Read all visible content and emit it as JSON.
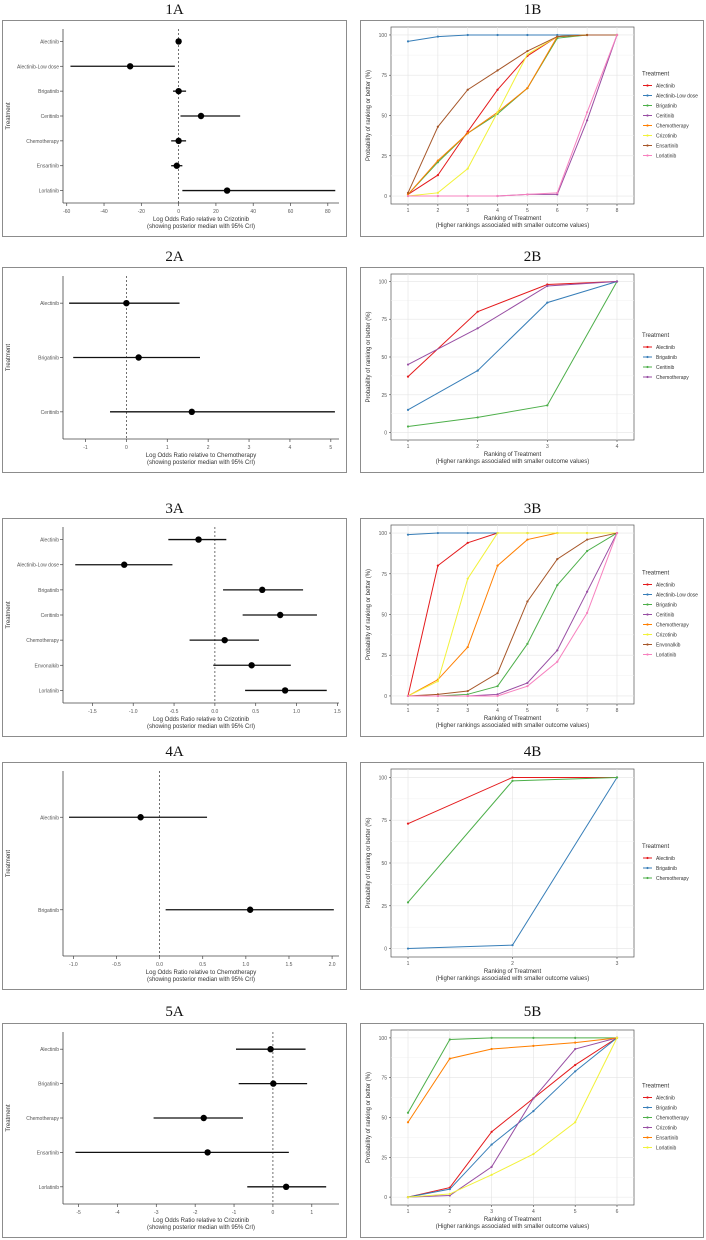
{
  "colors": {
    "red": "#E41A1C",
    "blue": "#377EB8",
    "green": "#4DAF4A",
    "purple": "#984EA3",
    "orange": "#FF7F00",
    "yellow": "#F2F23A",
    "brown": "#A65628",
    "pink": "#F781BF"
  },
  "chart_data": [
    {
      "id": "1A",
      "type": "forest",
      "title": "1A",
      "ylabel": "Treatment",
      "xlabel": "Log Odds Ratio relative to Crizotinib",
      "xlabel2": "(showing posterior median with 95% CrI)",
      "xlim": [
        -62,
        86
      ],
      "ticks": [
        "-60",
        "-40",
        "-20",
        "0",
        "20",
        "40",
        "60",
        "80"
      ],
      "rows": [
        {
          "name": "Alectinib",
          "median": 0,
          "lo": -1,
          "hi": 1
        },
        {
          "name": "Alectinib-Low dose",
          "median": -26,
          "lo": -58,
          "hi": -2
        },
        {
          "name": "Brigatinib",
          "median": 0,
          "lo": -3,
          "hi": 4
        },
        {
          "name": "Ceritinib",
          "median": 12,
          "lo": 1,
          "hi": 33
        },
        {
          "name": "Chemotherapy",
          "median": 0,
          "lo": -4,
          "hi": 4
        },
        {
          "name": "Ensartinib",
          "median": -1,
          "lo": -4,
          "hi": 2
        },
        {
          "name": "Lorlatinib",
          "median": 26,
          "lo": 2,
          "hi": 84
        }
      ]
    },
    {
      "id": "1B",
      "type": "line",
      "title": "1B",
      "ylabel": "Probability of ranking or better (%)",
      "xlabel": "Ranking of Treatment",
      "xlabel2": "(Higher rankings associated with smaller outcome values)",
      "legend_title": "Treatment",
      "legend": "right",
      "x": [
        "1",
        "2",
        "3",
        "4",
        "5",
        "6",
        "7",
        "8"
      ],
      "ylim": [
        0,
        100
      ],
      "yticks": [
        "0",
        "25",
        "50",
        "75",
        "100"
      ],
      "series": [
        {
          "name": "Alectinib",
          "color": "red",
          "values": [
            1,
            13,
            40,
            66,
            87,
            99,
            100,
            100
          ]
        },
        {
          "name": "Alectinib-Low dose",
          "color": "blue",
          "values": [
            96,
            99,
            100,
            100,
            100,
            100,
            100,
            100
          ]
        },
        {
          "name": "Brigatinib",
          "color": "green",
          "values": [
            1,
            21,
            39,
            51,
            67,
            98,
            100,
            100
          ]
        },
        {
          "name": "Ceritinib",
          "color": "purple",
          "values": [
            0,
            0,
            0,
            0,
            1,
            1,
            47,
            100
          ]
        },
        {
          "name": "Chemotherapy",
          "color": "orange",
          "values": [
            1,
            22,
            39,
            52,
            67,
            99,
            100,
            100
          ]
        },
        {
          "name": "Crizotinib",
          "color": "yellow",
          "values": [
            0,
            2,
            17,
            52,
            88,
            99,
            100,
            100
          ]
        },
        {
          "name": "Ensartinib",
          "color": "brown",
          "values": [
            2,
            43,
            66,
            78,
            90,
            99,
            100,
            100
          ]
        },
        {
          "name": "Lorlatinib",
          "color": "pink",
          "values": [
            0,
            0,
            0,
            0,
            1,
            2,
            52,
            100
          ]
        }
      ]
    },
    {
      "id": "2A",
      "type": "forest",
      "title": "2A",
      "ylabel": "Treatment",
      "xlabel": "Log Odds Ratio relative to Chemotherapy",
      "xlabel2": "(showing posterior median with 95% CrI)",
      "xlim": [
        -1.55,
        5.2
      ],
      "ticks": [
        "-1",
        "0",
        "1",
        "2",
        "3",
        "4",
        "5"
      ],
      "rows": [
        {
          "name": "Alectinib",
          "median": 0,
          "lo": -1.4,
          "hi": 1.3
        },
        {
          "name": "Brigatinib",
          "median": 0.3,
          "lo": -1.3,
          "hi": 1.8
        },
        {
          "name": "Ceritinib",
          "median": 1.6,
          "lo": -0.4,
          "hi": 5.1
        }
      ]
    },
    {
      "id": "2B",
      "type": "line",
      "title": "2B",
      "ylabel": "Probability of ranking or better (%)",
      "xlabel": "Ranking of Treatment",
      "xlabel2": "(Higher rankings associated with smaller outcome values)",
      "legend_title": "Treatment",
      "legend": "right",
      "x": [
        "1",
        "2",
        "3",
        "4"
      ],
      "ylim": [
        0,
        100
      ],
      "yticks": [
        "0",
        "25",
        "50",
        "75",
        "100"
      ],
      "series": [
        {
          "name": "Alectinib",
          "color": "red",
          "values": [
            37,
            80,
            98,
            100
          ]
        },
        {
          "name": "Brigatinib",
          "color": "blue",
          "values": [
            15,
            41,
            86,
            100
          ]
        },
        {
          "name": "Ceritinib",
          "color": "green",
          "values": [
            4,
            10,
            18,
            100
          ]
        },
        {
          "name": "Chemotherapy",
          "color": "purple",
          "values": [
            45,
            69,
            97,
            100
          ]
        }
      ]
    },
    {
      "id": "3A",
      "type": "forest",
      "title": "3A",
      "ylabel": "Treatment",
      "xlabel": "Log Odds Ratio relative to Crizotinib",
      "xlabel2": "(showing posterior median with 95% CrI)",
      "xlim": [
        -1.86,
        1.52
      ],
      "ticks": [
        "-1.5",
        "-1.0",
        "-0.5",
        "0.0",
        "0.5",
        "1.0",
        "1.5"
      ],
      "rows": [
        {
          "name": "Alectinib",
          "median": -0.2,
          "lo": -0.57,
          "hi": 0.14
        },
        {
          "name": "Alectinib-Low dose",
          "median": -1.11,
          "lo": -1.71,
          "hi": -0.52
        },
        {
          "name": "Brigatinib",
          "median": 0.58,
          "lo": 0.1,
          "hi": 1.08
        },
        {
          "name": "Ceritinib",
          "median": 0.8,
          "lo": 0.34,
          "hi": 1.25
        },
        {
          "name": "Chemotherapy",
          "median": 0.12,
          "lo": -0.31,
          "hi": 0.54
        },
        {
          "name": "Envonalkib",
          "median": 0.45,
          "lo": -0.02,
          "hi": 0.93
        },
        {
          "name": "Lorlatinib",
          "median": 0.86,
          "lo": 0.37,
          "hi": 1.37
        }
      ]
    },
    {
      "id": "3B",
      "type": "line",
      "title": "3B",
      "ylabel": "Probability of ranking or better (%)",
      "xlabel": "Ranking of Treatment",
      "xlabel2": "(Higher rankings associated with smaller outcome values)",
      "legend_title": "Treatment",
      "legend": "right",
      "x": [
        "1",
        "2",
        "3",
        "4",
        "5",
        "6",
        "7",
        "8"
      ],
      "ylim": [
        0,
        100
      ],
      "yticks": [
        "0",
        "25",
        "50",
        "75",
        "100"
      ],
      "series": [
        {
          "name": "Alectinib",
          "color": "red",
          "values": [
            0,
            80,
            94,
            100,
            100,
            100,
            100,
            100
          ]
        },
        {
          "name": "Alectinib-Low dose",
          "color": "blue",
          "values": [
            99,
            100,
            100,
            100,
            100,
            100,
            100,
            100
          ]
        },
        {
          "name": "Brigatinib",
          "color": "green",
          "values": [
            0,
            0,
            1,
            6,
            32,
            68,
            89,
            100
          ]
        },
        {
          "name": "Ceritinib",
          "color": "purple",
          "values": [
            0,
            0,
            0,
            1,
            8,
            28,
            64,
            100
          ]
        },
        {
          "name": "Chemotherapy",
          "color": "orange",
          "values": [
            0,
            10,
            30,
            80,
            96,
            100,
            100,
            100
          ]
        },
        {
          "name": "Crizotinib",
          "color": "yellow",
          "values": [
            0,
            9,
            72,
            100,
            100,
            100,
            100,
            100
          ]
        },
        {
          "name": "Envonalkib",
          "color": "brown",
          "values": [
            0,
            1,
            3,
            14,
            58,
            84,
            96,
            100
          ]
        },
        {
          "name": "Lorlatinib",
          "color": "pink",
          "values": [
            0,
            0,
            0,
            0,
            6,
            21,
            51,
            100
          ]
        }
      ]
    },
    {
      "id": "4A",
      "type": "forest",
      "title": "4A",
      "ylabel": "Treatment",
      "xlabel": "Log Odds Ratio relative to Chemotherapy",
      "xlabel2": "(showing posterior median with 95% CrI)",
      "xlim": [
        -1.12,
        2.08
      ],
      "ticks": [
        "-1.0",
        "-0.5",
        "0.0",
        "0.5",
        "1.0",
        "1.5",
        "2.0"
      ],
      "rows": [
        {
          "name": "Alectinib",
          "median": -0.22,
          "lo": -1.05,
          "hi": 0.55
        },
        {
          "name": "Brigatinib",
          "median": 1.05,
          "lo": 0.07,
          "hi": 2.02
        }
      ]
    },
    {
      "id": "4B",
      "type": "line",
      "title": "4B",
      "ylabel": "Probability of ranking or better (%)",
      "xlabel": "Ranking of Treatment",
      "xlabel2": "(Higher rankings associated with smaller outcome values)",
      "legend_title": "Treatment",
      "legend": "right",
      "x": [
        "1",
        "2",
        "3"
      ],
      "ylim": [
        0,
        100
      ],
      "yticks": [
        "0",
        "25",
        "50",
        "75",
        "100"
      ],
      "series": [
        {
          "name": "Alectinib",
          "color": "red",
          "values": [
            73,
            100,
            100
          ]
        },
        {
          "name": "Brigatinib",
          "color": "blue",
          "values": [
            0,
            2,
            100
          ]
        },
        {
          "name": "Chemotherapy",
          "color": "green",
          "values": [
            27,
            98,
            100
          ]
        }
      ]
    },
    {
      "id": "5A",
      "type": "forest",
      "title": "5A",
      "ylabel": "Treatment",
      "xlabel": "Log Odds Ratio relative to Crizotinib",
      "xlabel2": "(showing posterior median with 95% CrI)",
      "xlim": [
        -5.4,
        1.7
      ],
      "ticks": [
        "-5",
        "-4",
        "-3",
        "-2",
        "-1",
        "0",
        "1"
      ],
      "rows": [
        {
          "name": "Alectinib",
          "median": -0.06,
          "lo": -0.95,
          "hi": 0.84
        },
        {
          "name": "Brigatinib",
          "median": 0.01,
          "lo": -0.88,
          "hi": 0.88
        },
        {
          "name": "Chemotherapy",
          "median": -1.78,
          "lo": -3.07,
          "hi": -0.77
        },
        {
          "name": "Ensartinib",
          "median": -1.68,
          "lo": -5.08,
          "hi": 0.41
        },
        {
          "name": "Lorlatinib",
          "median": 0.34,
          "lo": -0.66,
          "hi": 1.37
        }
      ]
    },
    {
      "id": "5B",
      "type": "line",
      "title": "5B",
      "ylabel": "Probability of ranking or better (%)",
      "xlabel": "Ranking of Treatment",
      "xlabel2": "(Higher rankings associated with smaller outcome values)",
      "legend_title": "Treatment",
      "legend": "right",
      "x": [
        "1",
        "2",
        "3",
        "4",
        "5",
        "6"
      ],
      "ylim": [
        0,
        100
      ],
      "yticks": [
        "0",
        "25",
        "50",
        "75",
        "100"
      ],
      "series": [
        {
          "name": "Alectinib",
          "color": "red",
          "values": [
            0,
            6,
            41,
            62,
            83,
            100
          ]
        },
        {
          "name": "Brigatinib",
          "color": "blue",
          "values": [
            0,
            5,
            33,
            54,
            79,
            100
          ]
        },
        {
          "name": "Chemotherapy",
          "color": "green",
          "values": [
            53,
            99,
            100,
            100,
            100,
            100
          ]
        },
        {
          "name": "Crizotinib",
          "color": "purple",
          "values": [
            0,
            1,
            19,
            62,
            93,
            100
          ]
        },
        {
          "name": "Ensartinib",
          "color": "orange",
          "values": [
            47,
            87,
            93,
            95,
            97,
            100
          ]
        },
        {
          "name": "Lorlatinib",
          "color": "yellow",
          "values": [
            0,
            2,
            14,
            27,
            47,
            100
          ]
        }
      ]
    }
  ]
}
